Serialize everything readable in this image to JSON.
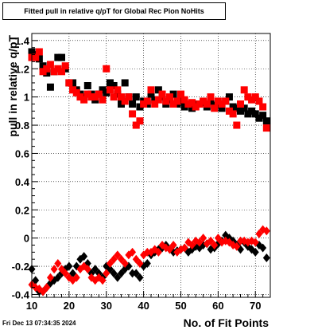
{
  "chart_data": {
    "type": "scatter",
    "title": "Fitted pull in relative q/pT for Global Rec Pion NoHits",
    "xlabel": "No. of Fit Points",
    "ylabel": "pull in relative q/pT",
    "xlim": [
      10,
      74
    ],
    "ylim": [
      -0.42,
      1.45
    ],
    "x_ticks": [
      10,
      20,
      30,
      40,
      50,
      60,
      70
    ],
    "y_ticks": [
      -0.4,
      -0.2,
      0,
      0.2,
      0.4,
      0.6,
      0.8,
      1,
      1.2,
      1.4
    ],
    "y_tick_labels": [
      "-0.4",
      "-0.2",
      "0",
      "0.2",
      "0.4",
      "0.6",
      "0.8",
      "1",
      "1.2",
      "1.4"
    ],
    "grid": true,
    "series": [
      {
        "color": "#000000",
        "marker": "square",
        "points": [
          [
            10,
            1.32
          ],
          [
            11,
            1.3
          ],
          [
            12,
            1.27
          ],
          [
            13,
            1.22
          ],
          [
            14,
            1.17
          ],
          [
            15,
            1.07
          ],
          [
            16,
            1.18
          ],
          [
            17,
            1.28
          ],
          [
            18,
            1.28
          ],
          [
            19,
            1.2
          ],
          [
            20,
            1.1
          ],
          [
            21,
            1.1
          ],
          [
            22,
            1.05
          ],
          [
            23,
            1.02
          ],
          [
            24,
            1.0
          ],
          [
            25,
            1.08
          ],
          [
            26,
            1.02
          ],
          [
            27,
            0.98
          ],
          [
            28,
            1.02
          ],
          [
            29,
            1.05
          ],
          [
            30,
            1.03
          ],
          [
            31,
            1.1
          ],
          [
            32,
            1.08
          ],
          [
            33,
            1.02
          ],
          [
            34,
            0.95
          ],
          [
            35,
            1.1
          ],
          [
            36,
            1.0
          ],
          [
            37,
            0.95
          ],
          [
            38,
            1.0
          ],
          [
            39,
            0.93
          ],
          [
            40,
            0.97
          ],
          [
            41,
            0.95
          ],
          [
            42,
            1.02
          ],
          [
            43,
            0.98
          ],
          [
            44,
            1.05
          ],
          [
            45,
            1.0
          ],
          [
            46,
            0.95
          ],
          [
            47,
            0.98
          ],
          [
            48,
            1.02
          ],
          [
            49,
            0.95
          ],
          [
            50,
            0.97
          ],
          [
            51,
            0.93
          ],
          [
            52,
            0.95
          ],
          [
            53,
            0.92
          ],
          [
            54,
            0.95
          ],
          [
            55,
            0.95
          ],
          [
            56,
            0.96
          ],
          [
            57,
            0.93
          ],
          [
            58,
            0.97
          ],
          [
            59,
            0.94
          ],
          [
            60,
            0.95
          ],
          [
            61,
            0.92
          ],
          [
            62,
            0.97
          ],
          [
            63,
            1.0
          ],
          [
            64,
            0.93
          ],
          [
            65,
            0.92
          ],
          [
            66,
            0.9
          ],
          [
            67,
            0.92
          ],
          [
            68,
            0.88
          ],
          [
            69,
            0.9
          ],
          [
            70,
            0.88
          ],
          [
            71,
            0.85
          ],
          [
            72,
            0.87
          ],
          [
            73,
            0.83
          ]
        ]
      },
      {
        "color": "#ff0000",
        "marker": "square",
        "points": [
          [
            10,
            1.28
          ],
          [
            11,
            1.28
          ],
          [
            12,
            1.32
          ],
          [
            13,
            1.18
          ],
          [
            14,
            1.2
          ],
          [
            15,
            1.23
          ],
          [
            16,
            1.18
          ],
          [
            17,
            1.2
          ],
          [
            18,
            1.18
          ],
          [
            19,
            1.22
          ],
          [
            20,
            1.1
          ],
          [
            21,
            1.05
          ],
          [
            22,
            1.03
          ],
          [
            23,
            1.0
          ],
          [
            24,
            0.98
          ],
          [
            25,
            1.02
          ],
          [
            26,
            1.0
          ],
          [
            27,
            1.0
          ],
          [
            28,
            1.02
          ],
          [
            29,
            0.98
          ],
          [
            30,
            1.2
          ],
          [
            31,
            1.05
          ],
          [
            32,
            1.0
          ],
          [
            33,
            1.05
          ],
          [
            34,
            1.0
          ],
          [
            35,
            0.97
          ],
          [
            36,
            1.0
          ],
          [
            37,
            0.88
          ],
          [
            38,
            0.8
          ],
          [
            39,
            0.83
          ],
          [
            40,
            0.95
          ],
          [
            41,
            0.97
          ],
          [
            42,
            1.05
          ],
          [
            43,
            0.95
          ],
          [
            44,
            0.98
          ],
          [
            45,
            1.02
          ],
          [
            46,
            0.97
          ],
          [
            47,
            1.0
          ],
          [
            48,
            0.95
          ],
          [
            49,
            0.97
          ],
          [
            50,
            1.02
          ],
          [
            51,
            0.98
          ],
          [
            52,
            0.95
          ],
          [
            53,
            0.96
          ],
          [
            54,
            0.93
          ],
          [
            55,
            0.95
          ],
          [
            56,
            0.97
          ],
          [
            57,
            0.95
          ],
          [
            58,
            1.0
          ],
          [
            59,
            0.92
          ],
          [
            60,
            0.97
          ],
          [
            61,
            0.95
          ],
          [
            62,
            0.97
          ],
          [
            63,
            0.9
          ],
          [
            64,
            0.88
          ],
          [
            65,
            0.8
          ],
          [
            66,
            0.95
          ],
          [
            67,
            1.05
          ],
          [
            68,
            1.0
          ],
          [
            69,
            0.98
          ],
          [
            70,
            1.0
          ],
          [
            71,
            0.97
          ],
          [
            72,
            0.93
          ],
          [
            73,
            0.78
          ]
        ]
      },
      {
        "color": "#000000",
        "marker": "diamond",
        "points": [
          [
            10,
            -0.22
          ],
          [
            11,
            -0.3
          ],
          [
            12,
            -0.38
          ],
          [
            13,
            -0.38
          ],
          [
            14,
            -0.35
          ],
          [
            15,
            -0.32
          ],
          [
            16,
            -0.3
          ],
          [
            17,
            -0.28
          ],
          [
            18,
            -0.25
          ],
          [
            19,
            -0.22
          ],
          [
            20,
            -0.2
          ],
          [
            21,
            -0.25
          ],
          [
            22,
            -0.2
          ],
          [
            23,
            -0.15
          ],
          [
            24,
            -0.13
          ],
          [
            25,
            -0.18
          ],
          [
            26,
            -0.25
          ],
          [
            27,
            -0.22
          ],
          [
            28,
            -0.25
          ],
          [
            29,
            -0.28
          ],
          [
            30,
            -0.2
          ],
          [
            31,
            -0.22
          ],
          [
            32,
            -0.25
          ],
          [
            33,
            -0.28
          ],
          [
            34,
            -0.25
          ],
          [
            35,
            -0.22
          ],
          [
            36,
            -0.2
          ],
          [
            37,
            -0.25
          ],
          [
            38,
            -0.25
          ],
          [
            39,
            -0.28
          ],
          [
            40,
            -0.2
          ],
          [
            41,
            -0.18
          ],
          [
            42,
            -0.12
          ],
          [
            43,
            -0.1
          ],
          [
            44,
            -0.08
          ],
          [
            45,
            -0.07
          ],
          [
            46,
            -0.05
          ],
          [
            47,
            -0.08
          ],
          [
            48,
            -0.1
          ],
          [
            49,
            -0.09
          ],
          [
            50,
            -0.08
          ],
          [
            51,
            -0.07
          ],
          [
            52,
            -0.1
          ],
          [
            53,
            -0.08
          ],
          [
            54,
            -0.06
          ],
          [
            55,
            -0.07
          ],
          [
            56,
            -0.05
          ],
          [
            57,
            -0.04
          ],
          [
            58,
            -0.08
          ],
          [
            59,
            -0.07
          ],
          [
            60,
            -0.04
          ],
          [
            61,
            -0.02
          ],
          [
            62,
            0.02
          ],
          [
            63,
            0.0
          ],
          [
            64,
            -0.02
          ],
          [
            65,
            -0.05
          ],
          [
            66,
            -0.08
          ],
          [
            67,
            -0.03
          ],
          [
            68,
            -0.06
          ],
          [
            69,
            -0.08
          ],
          [
            70,
            -0.1
          ],
          [
            71,
            -0.05
          ],
          [
            72,
            -0.07
          ],
          [
            73,
            -0.14
          ]
        ]
      },
      {
        "color": "#ff0000",
        "marker": "diamond",
        "points": [
          [
            10,
            -0.33
          ],
          [
            11,
            -0.35
          ],
          [
            12,
            -0.36
          ],
          [
            13,
            -0.38
          ],
          [
            14,
            -0.35
          ],
          [
            15,
            -0.28
          ],
          [
            16,
            -0.22
          ],
          [
            17,
            -0.18
          ],
          [
            18,
            -0.22
          ],
          [
            19,
            -0.25
          ],
          [
            20,
            -0.28
          ],
          [
            21,
            -0.3
          ],
          [
            22,
            -0.28
          ],
          [
            23,
            -0.22
          ],
          [
            24,
            -0.2
          ],
          [
            25,
            -0.22
          ],
          [
            26,
            -0.28
          ],
          [
            27,
            -0.3
          ],
          [
            28,
            -0.28
          ],
          [
            29,
            -0.3
          ],
          [
            30,
            -0.25
          ],
          [
            31,
            -0.18
          ],
          [
            32,
            -0.15
          ],
          [
            33,
            -0.12
          ],
          [
            34,
            -0.15
          ],
          [
            35,
            -0.18
          ],
          [
            36,
            -0.12
          ],
          [
            37,
            -0.1
          ],
          [
            38,
            -0.15
          ],
          [
            39,
            -0.18
          ],
          [
            40,
            -0.12
          ],
          [
            41,
            -0.1
          ],
          [
            42,
            -0.1
          ],
          [
            43,
            -0.08
          ],
          [
            44,
            -0.1
          ],
          [
            45,
            -0.05
          ],
          [
            46,
            -0.07
          ],
          [
            47,
            -0.08
          ],
          [
            48,
            -0.05
          ],
          [
            49,
            -0.1
          ],
          [
            50,
            -0.08
          ],
          [
            51,
            -0.07
          ],
          [
            52,
            -0.03
          ],
          [
            53,
            -0.05
          ],
          [
            54,
            -0.02
          ],
          [
            55,
            -0.03
          ],
          [
            56,
            0.0
          ],
          [
            57,
            -0.04
          ],
          [
            58,
            -0.02
          ],
          [
            59,
            -0.05
          ],
          [
            60,
            0.0
          ],
          [
            61,
            -0.03
          ],
          [
            62,
            -0.02
          ],
          [
            63,
            -0.03
          ],
          [
            64,
            -0.05
          ],
          [
            65,
            -0.06
          ],
          [
            66,
            -0.02
          ],
          [
            67,
            -0.02
          ],
          [
            68,
            -0.03
          ],
          [
            69,
            -0.02
          ],
          [
            70,
            -0.03
          ],
          [
            71,
            0.03
          ],
          [
            72,
            0.06
          ],
          [
            73,
            0.05
          ]
        ]
      }
    ]
  },
  "footer": {
    "timestamp": "Fri Dec 13 07:34:35 2024"
  }
}
